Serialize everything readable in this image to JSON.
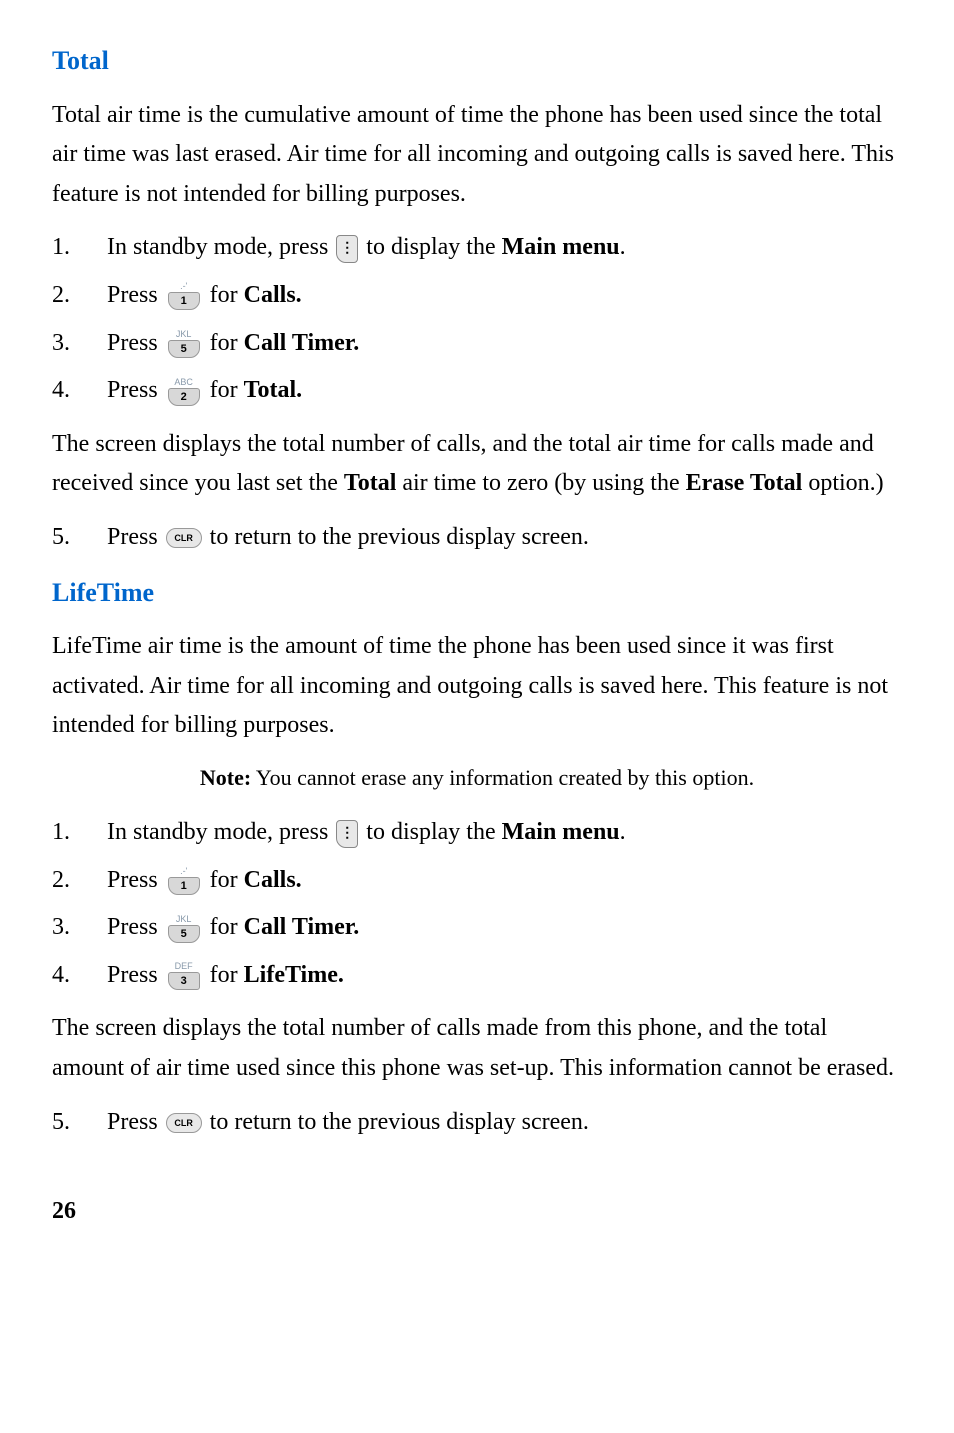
{
  "section1": {
    "heading": "Total",
    "intro": "Total air time is the cumulative amount of time the phone has been used since the total air time was last erased. Air time for all incoming and outgoing calls is saved here. This feature is not intended for billing purposes.",
    "steps": [
      {
        "num": "1.",
        "text1": "In standby mode, press",
        "text2": " to display the ",
        "bold": "Main menu",
        "text3": "."
      },
      {
        "num": "2.",
        "text1": "Press ",
        "text2": " for ",
        "bold": "Calls."
      },
      {
        "num": "3.",
        "text1": "Press ",
        "text2": " for ",
        "bold": "Call Timer."
      },
      {
        "num": "4.",
        "text1": "Press ",
        "text2": " for ",
        "bold": "Total."
      }
    ],
    "mid_text1": "The screen displays the total number of calls, and the total air time for calls made and received since you last set the ",
    "mid_bold1": "Total",
    "mid_text2": " air time to zero (by using the ",
    "mid_bold2": "Erase Total",
    "mid_text3": " option.)",
    "step5": {
      "num": "5.",
      "text1": "Press ",
      "text2": " to return to the previous display screen."
    }
  },
  "section2": {
    "heading": "LifeTime",
    "intro": "LifeTime air time is the amount of time the phone has been used since it was first activated. Air time for all incoming and outgoing calls is saved here. This feature is not intended for billing purposes.",
    "note_label": "Note:",
    "note_text": " You cannot erase any information created by this option.",
    "steps": [
      {
        "num": "1.",
        "text1": "In standby mode, press ",
        "text2": " to display the ",
        "bold": "Main menu",
        "text3": "."
      },
      {
        "num": "2.",
        "text1": "Press ",
        "text2": " for ",
        "bold": "Calls."
      },
      {
        "num": "3.",
        "text1": "Press ",
        "text2": " for ",
        "bold": "Call Timer."
      },
      {
        "num": "4.",
        "text1": "Press ",
        "text2": " for ",
        "bold": "LifeTime."
      }
    ],
    "mid_text": "The screen displays the total number of calls made from this phone, and the total amount of air time used since this phone was set-up. This information cannot be erased.",
    "step5": {
      "num": "5.",
      "text1": "Press ",
      "text2": " to return to the previous display screen."
    }
  },
  "keys": {
    "key1_label": ".-'",
    "key1_num": "1",
    "key2_label": "ABC",
    "key2_num": "2",
    "key3_label": "DEF",
    "key3_num": "3",
    "key5_label": "JKL",
    "key5_num": "5",
    "clr_label": "CLR"
  },
  "page_number": "26",
  "colors": {
    "heading_color": "#0066cc",
    "text_color": "#000000",
    "background": "#ffffff",
    "key_bg": "#e8e8e8",
    "key_border": "#999999"
  }
}
